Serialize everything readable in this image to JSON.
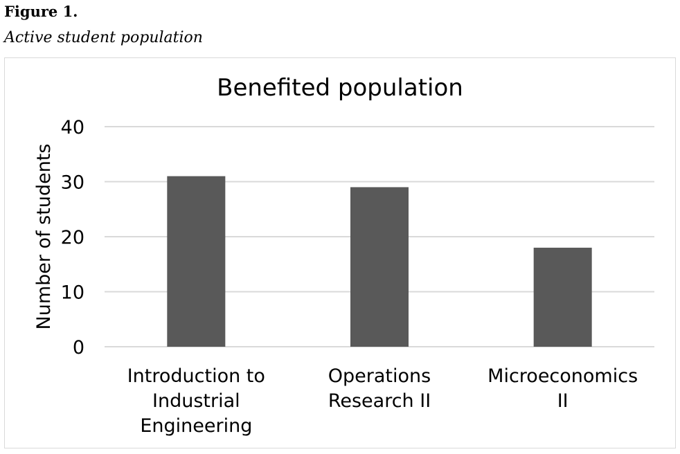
{
  "figure": {
    "label": "Figure 1.",
    "caption": "Active student population"
  },
  "chart_data": {
    "type": "bar",
    "title": "Benefited population",
    "xlabel": "",
    "ylabel": "Number of students",
    "categories": [
      [
        "Introduction to",
        "Industrial",
        "Engineering"
      ],
      [
        "Operations",
        "Research II"
      ],
      [
        "Microeconomics",
        "II"
      ]
    ],
    "values": [
      31,
      29,
      18
    ],
    "ylim": [
      0,
      40
    ],
    "yticks": [
      0,
      10,
      20,
      30,
      40
    ],
    "grid": true,
    "legend": "none",
    "bar_color": "#595959",
    "grid_color": "#d9d9d9"
  }
}
